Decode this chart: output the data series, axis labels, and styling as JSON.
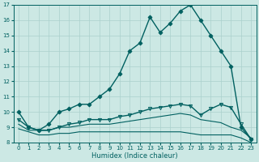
{
  "xlabel": "Humidex (Indice chaleur)",
  "xlim": [
    -0.5,
    23.5
  ],
  "ylim": [
    8,
    17
  ],
  "xticks": [
    0,
    1,
    2,
    3,
    4,
    5,
    6,
    7,
    8,
    9,
    10,
    11,
    12,
    13,
    14,
    15,
    16,
    17,
    18,
    19,
    20,
    21,
    22,
    23
  ],
  "yticks": [
    8,
    9,
    10,
    11,
    12,
    13,
    14,
    15,
    16,
    17
  ],
  "bg_color": "#cce8e4",
  "line_color": "#006060",
  "grid_color": "#aad0cc",
  "series": [
    {
      "y": [
        10.0,
        9.0,
        8.8,
        9.2,
        10.0,
        10.2,
        10.5,
        10.5,
        11.0,
        11.5,
        12.5,
        14.0,
        14.5,
        16.2,
        15.2,
        15.8,
        16.6,
        17.0,
        16.0,
        15.0,
        14.0,
        13.0,
        9.0,
        8.2
      ],
      "marker": "D",
      "markersize": 2.5,
      "linewidth": 1.0,
      "markerfill": true
    },
    {
      "y": [
        9.5,
        9.0,
        8.8,
        8.8,
        9.0,
        9.2,
        9.3,
        9.5,
        9.5,
        9.5,
        9.7,
        9.8,
        10.0,
        10.2,
        10.3,
        10.4,
        10.5,
        10.4,
        9.8,
        10.2,
        10.5,
        10.3,
        9.2,
        8.2
      ],
      "marker": "v",
      "markersize": 3.0,
      "linewidth": 1.0,
      "markerfill": false
    },
    {
      "y": [
        9.2,
        8.8,
        8.8,
        8.8,
        9.0,
        9.0,
        9.1,
        9.2,
        9.2,
        9.2,
        9.3,
        9.4,
        9.5,
        9.6,
        9.7,
        9.8,
        9.9,
        9.8,
        9.5,
        9.4,
        9.3,
        9.0,
        8.8,
        8.3
      ],
      "marker": null,
      "markersize": 0,
      "linewidth": 0.8,
      "markerfill": false
    },
    {
      "y": [
        8.9,
        8.7,
        8.5,
        8.5,
        8.6,
        8.6,
        8.7,
        8.7,
        8.7,
        8.7,
        8.7,
        8.7,
        8.7,
        8.7,
        8.7,
        8.7,
        8.7,
        8.6,
        8.5,
        8.5,
        8.5,
        8.5,
        8.3,
        8.0
      ],
      "marker": null,
      "markersize": 0,
      "linewidth": 0.8,
      "markerfill": false
    }
  ]
}
